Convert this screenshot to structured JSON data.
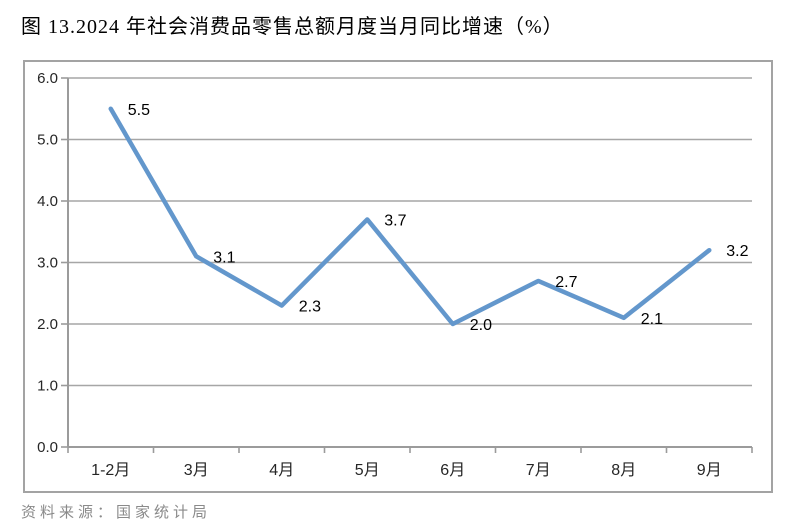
{
  "title": "图 13.2024 年社会消费品零售总额月度当月同比增速（%）",
  "source_note": "资料来源：国家统计局",
  "colors": {
    "line": "#6397CC",
    "grid": "#A6A6A6",
    "axis": "#9B9B9B",
    "frame_border": "#A3A3A3",
    "tick_text": "#262626",
    "data_label_text": "#000000",
    "source_text": "#8A8A8A"
  },
  "chart_data": {
    "type": "line",
    "title": "图 13.2024 年社会消费品零售总额月度当月同比增速（%）",
    "categories": [
      "1-2月",
      "3月",
      "4月",
      "5月",
      "6月",
      "7月",
      "8月",
      "9月"
    ],
    "values": [
      5.5,
      3.1,
      2.3,
      3.7,
      2.0,
      2.7,
      2.1,
      3.2
    ],
    "data_labels": [
      "5.5",
      "3.1",
      "2.3",
      "3.7",
      "2.0",
      "2.7",
      "2.1",
      "3.2"
    ],
    "xlabel": "",
    "ylabel": "",
    "ylim": [
      0,
      6
    ],
    "ytick_step": 1,
    "ytick_labels": [
      "0.0",
      "1.0",
      "2.0",
      "3.0",
      "4.0",
      "5.0",
      "6.0"
    ],
    "grid": true,
    "legend_position": "none"
  }
}
